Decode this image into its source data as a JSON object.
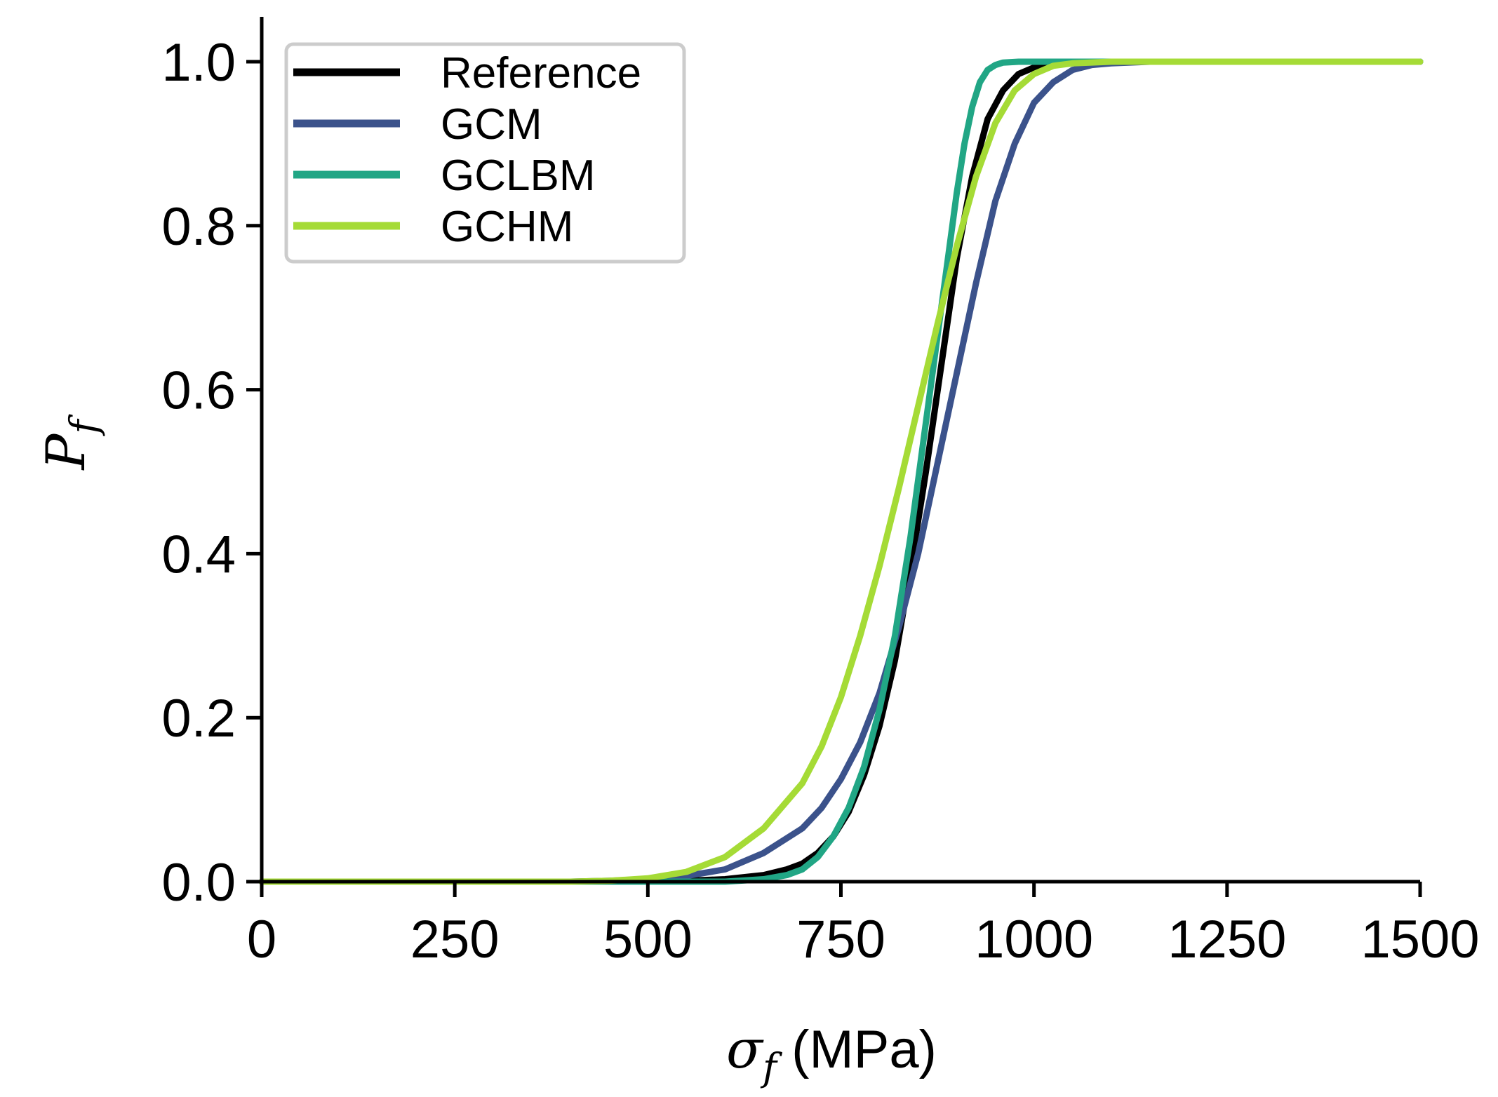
{
  "chart_data": {
    "type": "line",
    "title": "",
    "xlabel": {
      "symbol": "σ",
      "subscript": "f",
      "unit": "(MPa)"
    },
    "ylabel": {
      "symbol": "P",
      "subscript": "f"
    },
    "xlim": [
      0,
      1500
    ],
    "ylim": [
      0,
      1.05
    ],
    "x_ticks": [
      0,
      250,
      500,
      750,
      1000,
      1250,
      1500
    ],
    "x_tick_labels": [
      "0",
      "250",
      "500",
      "750",
      "1000",
      "1250",
      "1500"
    ],
    "y_ticks": [
      0.0,
      0.2,
      0.4,
      0.6,
      0.8,
      1.0
    ],
    "y_tick_labels": [
      "0.0",
      "0.2",
      "0.4",
      "0.6",
      "0.8",
      "1.0"
    ],
    "grid": false,
    "legend_position": "top-left",
    "series": [
      {
        "name": "Reference",
        "color": "#000000",
        "x": [
          0,
          500,
          550,
          600,
          650,
          680,
          700,
          720,
          740,
          760,
          780,
          800,
          820,
          840,
          860,
          880,
          900,
          920,
          940,
          960,
          980,
          1000,
          1030,
          1060,
          1100,
          1200,
          1500
        ],
        "y": [
          0,
          0,
          0.001,
          0.003,
          0.008,
          0.015,
          0.022,
          0.035,
          0.055,
          0.085,
          0.13,
          0.19,
          0.27,
          0.38,
          0.5,
          0.63,
          0.76,
          0.86,
          0.93,
          0.965,
          0.985,
          0.993,
          0.998,
          0.999,
          1.0,
          1.0,
          1.0
        ]
      },
      {
        "name": "GCM",
        "color": "#3b528b",
        "x": [
          0,
          400,
          450,
          500,
          550,
          600,
          650,
          700,
          725,
          750,
          775,
          800,
          825,
          850,
          875,
          900,
          925,
          950,
          975,
          1000,
          1025,
          1050,
          1075,
          1100,
          1150,
          1200,
          1500
        ],
        "y": [
          0,
          0,
          0.001,
          0.003,
          0.007,
          0.015,
          0.035,
          0.065,
          0.09,
          0.125,
          0.17,
          0.23,
          0.31,
          0.4,
          0.51,
          0.62,
          0.73,
          0.83,
          0.9,
          0.95,
          0.975,
          0.99,
          0.996,
          0.998,
          1.0,
          1.0,
          1.0
        ]
      },
      {
        "name": "GCLBM",
        "color": "#21a685",
        "x": [
          0,
          600,
          650,
          680,
          700,
          720,
          740,
          760,
          780,
          800,
          820,
          840,
          860,
          880,
          900,
          910,
          920,
          930,
          940,
          950,
          960,
          980,
          1000,
          1050,
          1500
        ],
        "y": [
          0,
          0,
          0.003,
          0.008,
          0.015,
          0.03,
          0.055,
          0.09,
          0.14,
          0.21,
          0.3,
          0.42,
          0.56,
          0.7,
          0.84,
          0.9,
          0.945,
          0.975,
          0.99,
          0.996,
          0.999,
          1.0,
          1.0,
          1.0,
          1.0
        ]
      },
      {
        "name": "GCHM",
        "color": "#a5db36",
        "x": [
          0,
          400,
          450,
          500,
          550,
          600,
          650,
          700,
          725,
          750,
          775,
          800,
          825,
          850,
          875,
          900,
          925,
          950,
          975,
          1000,
          1025,
          1050,
          1100,
          1200,
          1500
        ],
        "y": [
          0,
          0,
          0.001,
          0.004,
          0.012,
          0.03,
          0.065,
          0.12,
          0.165,
          0.225,
          0.3,
          0.385,
          0.48,
          0.58,
          0.68,
          0.775,
          0.86,
          0.925,
          0.965,
          0.985,
          0.995,
          0.998,
          1.0,
          1.0,
          1.0
        ]
      }
    ]
  }
}
